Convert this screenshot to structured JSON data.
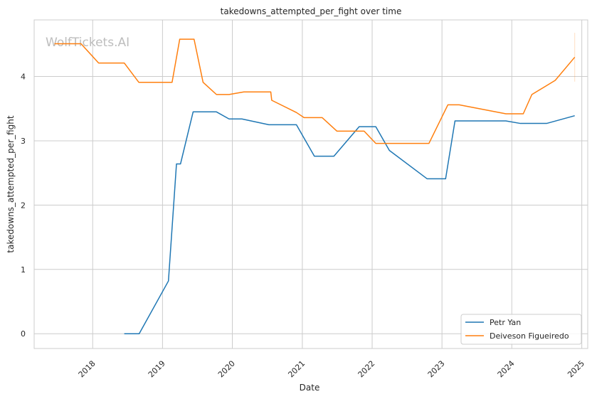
{
  "chart_data": {
    "type": "line",
    "title": "takedowns_attempted_per_fight over time",
    "xlabel": "Date",
    "ylabel": "takedowns_attempted_per_fight",
    "watermark": "WolfTickets.AI",
    "x_axis": {
      "kind": "date",
      "range": [
        "2017-03-01",
        "2025-02-01"
      ],
      "ticks": [
        "2018-01-01",
        "2019-01-01",
        "2020-01-01",
        "2021-01-01",
        "2022-01-01",
        "2023-01-01",
        "2024-01-01",
        "2025-01-01"
      ],
      "tick_labels": [
        "2018",
        "2019",
        "2020",
        "2021",
        "2022",
        "2023",
        "2024",
        "2025"
      ]
    },
    "y_axis": {
      "range": [
        -0.23,
        4.88
      ],
      "ticks": [
        0,
        1,
        2,
        3,
        4
      ],
      "tick_labels": [
        "0",
        "1",
        "2",
        "3",
        "4"
      ]
    },
    "grid": true,
    "legend_position": "bottom-right",
    "series": [
      {
        "name": "Petr Yan",
        "color": "#1f77b4",
        "points": [
          [
            "2018-06-15",
            0.0
          ],
          [
            "2018-09-01",
            0.0
          ],
          [
            "2019-02-01",
            0.82
          ],
          [
            "2019-03-15",
            2.64
          ],
          [
            "2019-04-05",
            2.64
          ],
          [
            "2019-06-10",
            3.45
          ],
          [
            "2019-10-10",
            3.45
          ],
          [
            "2019-12-15",
            3.34
          ],
          [
            "2020-02-20",
            3.34
          ],
          [
            "2020-07-10",
            3.25
          ],
          [
            "2020-12-01",
            3.25
          ],
          [
            "2021-03-05",
            2.76
          ],
          [
            "2021-06-15",
            2.76
          ],
          [
            "2021-10-25",
            3.22
          ],
          [
            "2022-01-20",
            3.22
          ],
          [
            "2022-04-01",
            2.85
          ],
          [
            "2022-10-15",
            2.41
          ],
          [
            "2023-01-20",
            2.41
          ],
          [
            "2023-03-10",
            3.31
          ],
          [
            "2023-12-01",
            3.31
          ],
          [
            "2024-02-15",
            3.27
          ],
          [
            "2024-07-01",
            3.27
          ],
          [
            "2024-11-25",
            3.39
          ]
        ]
      },
      {
        "name": "Deiveson Figueiredo",
        "color": "#ff7f0e",
        "points": [
          [
            "2017-06-15",
            4.51
          ],
          [
            "2017-11-01",
            4.51
          ],
          [
            "2018-02-01",
            4.21
          ],
          [
            "2018-06-15",
            4.21
          ],
          [
            "2018-08-30",
            3.91
          ],
          [
            "2019-02-20",
            3.91
          ],
          [
            "2019-04-01",
            4.58
          ],
          [
            "2019-06-15",
            4.58
          ],
          [
            "2019-08-01",
            3.91
          ],
          [
            "2019-10-10",
            3.72
          ],
          [
            "2019-12-15",
            3.72
          ],
          [
            "2020-03-01",
            3.76
          ],
          [
            "2020-07-20",
            3.76
          ],
          [
            "2020-07-25",
            3.63
          ],
          [
            "2020-12-01",
            3.44
          ],
          [
            "2021-01-10",
            3.36
          ],
          [
            "2021-04-15",
            3.36
          ],
          [
            "2021-07-01",
            3.15
          ],
          [
            "2021-11-20",
            3.15
          ],
          [
            "2022-01-20",
            2.96
          ],
          [
            "2022-10-25",
            2.96
          ],
          [
            "2023-02-01",
            3.56
          ],
          [
            "2023-04-01",
            3.56
          ],
          [
            "2023-12-01",
            3.42
          ],
          [
            "2024-03-01",
            3.42
          ],
          [
            "2024-04-15",
            3.72
          ],
          [
            "2024-08-15",
            3.94
          ],
          [
            "2024-11-25",
            4.3
          ]
        ],
        "band": {
          "x": "2024-11-25",
          "low": 3.92,
          "high": 4.68
        }
      }
    ]
  }
}
